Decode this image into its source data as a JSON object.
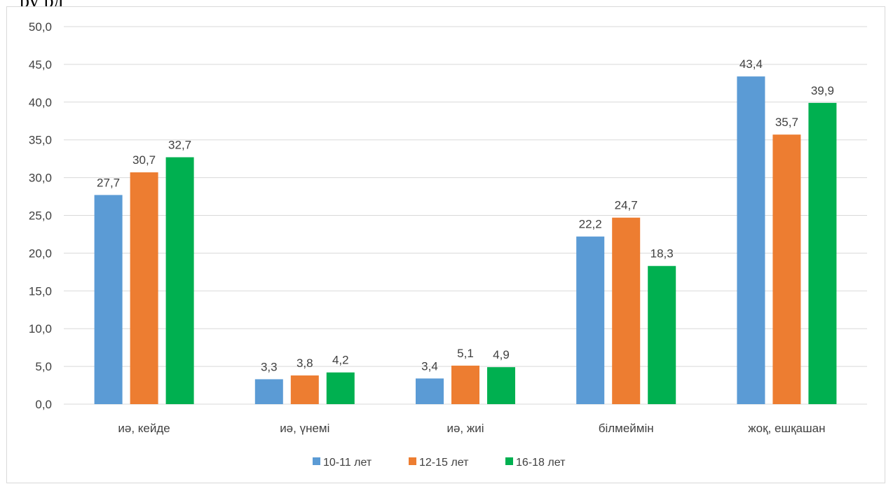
{
  "fragment_text": "ру    рд",
  "colors": {
    "series": [
      "#5b9bd5",
      "#ed7d31",
      "#00b050"
    ],
    "grid": "#d9d9d9",
    "text": "#404040"
  },
  "chart_data": {
    "type": "bar",
    "title": "",
    "xlabel": "",
    "ylabel": "",
    "ylim": [
      0,
      50
    ],
    "ytick_step": 5,
    "ytick_labels": [
      "0,0",
      "5,0",
      "10,0",
      "15,0",
      "20,0",
      "25,0",
      "30,0",
      "35,0",
      "40,0",
      "45,0",
      "50,0"
    ],
    "grid": true,
    "legend_position": "bottom",
    "categories": [
      "иә, кейде",
      "иә, үнемі",
      "иә, жиі",
      "білмеймін",
      "жоқ, ешқашан"
    ],
    "series": [
      {
        "name": "10-11 лет",
        "values": [
          27.7,
          3.3,
          3.4,
          22.2,
          43.4
        ],
        "labels": [
          "27,7",
          "3,3",
          "3,4",
          "22,2",
          "43,4"
        ]
      },
      {
        "name": "12-15 лет",
        "values": [
          30.7,
          3.8,
          5.1,
          24.7,
          35.7
        ],
        "labels": [
          "30,7",
          "3,8",
          "5,1",
          "24,7",
          "35,7"
        ]
      },
      {
        "name": "16-18 лет",
        "values": [
          32.7,
          4.2,
          4.9,
          18.3,
          39.9
        ],
        "labels": [
          "32,7",
          "4,2",
          "4,9",
          "18,3",
          "39,9"
        ]
      }
    ]
  }
}
